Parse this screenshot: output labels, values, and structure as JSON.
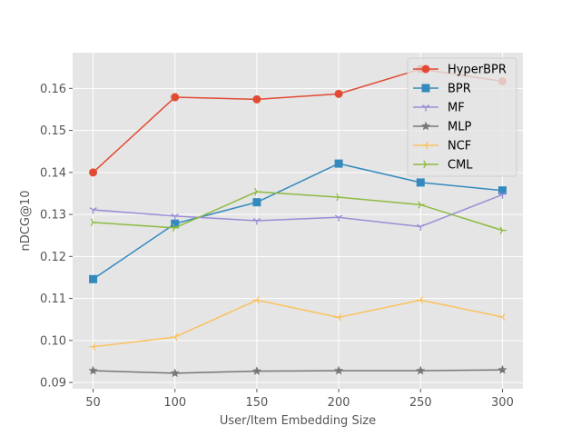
{
  "chart_data": {
    "type": "line",
    "xlabel": "User/Item Embedding Size",
    "ylabel": "nDCG@10",
    "x": [
      50,
      100,
      150,
      200,
      250,
      300
    ],
    "xticks": [
      "50",
      "100",
      "150",
      "200",
      "250",
      "300"
    ],
    "yticks": [
      "0.09",
      "0.10",
      "0.11",
      "0.12",
      "0.13",
      "0.14",
      "0.15",
      "0.16"
    ],
    "xlim": [
      37.5,
      312.5
    ],
    "ylim": [
      0.0885,
      0.1685
    ],
    "grid": true,
    "legend_position": "top-right",
    "series": [
      {
        "name": "HyperBPR",
        "color": "#E24A33",
        "marker": "circle",
        "values": [
          0.14,
          0.1579,
          0.1574,
          0.1587,
          0.1646,
          0.1617
        ]
      },
      {
        "name": "BPR",
        "color": "#348ABD",
        "marker": "square",
        "values": [
          0.1146,
          0.1278,
          0.1329,
          0.1421,
          0.1376,
          0.1357
        ]
      },
      {
        "name": "MF",
        "color": "#988ED5",
        "marker": "tri_down",
        "values": [
          0.1311,
          0.1296,
          0.1285,
          0.1293,
          0.1271,
          0.1347
        ]
      },
      {
        "name": "MLP",
        "color": "#777777",
        "marker": "star",
        "values": [
          0.0928,
          0.0922,
          0.0927,
          0.0928,
          0.0928,
          0.093
        ]
      },
      {
        "name": "NCF",
        "color": "#FBC15E",
        "marker": "tri_left",
        "values": [
          0.0985,
          0.1008,
          0.1096,
          0.1055,
          0.1096,
          0.1056
        ]
      },
      {
        "name": "CML",
        "color": "#8EBA42",
        "marker": "tri_right",
        "values": [
          0.1281,
          0.1268,
          0.1354,
          0.1341,
          0.1323,
          0.1262
        ]
      }
    ]
  }
}
